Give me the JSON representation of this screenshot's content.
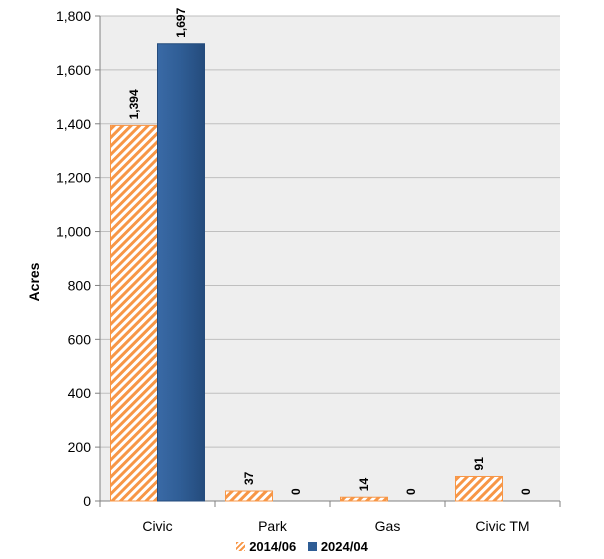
{
  "chart_data": {
    "type": "bar",
    "categories": [
      "Civic",
      "Park",
      "Gas",
      "Civic TM"
    ],
    "series": [
      {
        "name": "2014/06",
        "values": [
          1394,
          37,
          14,
          91
        ],
        "color": "#F79646",
        "pattern": "diagonal-hatch"
      },
      {
        "name": "2024/04",
        "values": [
          1697,
          0,
          0,
          0
        ],
        "color": "#2F5D95",
        "pattern": "solid"
      }
    ],
    "data_labels": [
      [
        "1,394",
        "37",
        "14",
        "91"
      ],
      [
        "1,697",
        "0",
        "0",
        "0"
      ]
    ],
    "xlabel": "",
    "ylabel": "Acres",
    "ylim": [
      0,
      1800
    ],
    "yticks": [
      0,
      200,
      400,
      600,
      800,
      1000,
      1200,
      1400,
      1600,
      1800
    ],
    "ytick_labels": [
      "0",
      "200",
      "400",
      "600",
      "800",
      "1,000",
      "1,200",
      "1,400",
      "1,600",
      "1,800"
    ],
    "grid": true,
    "legend_position": "bottom",
    "plot_background": "#EEEEEE"
  }
}
